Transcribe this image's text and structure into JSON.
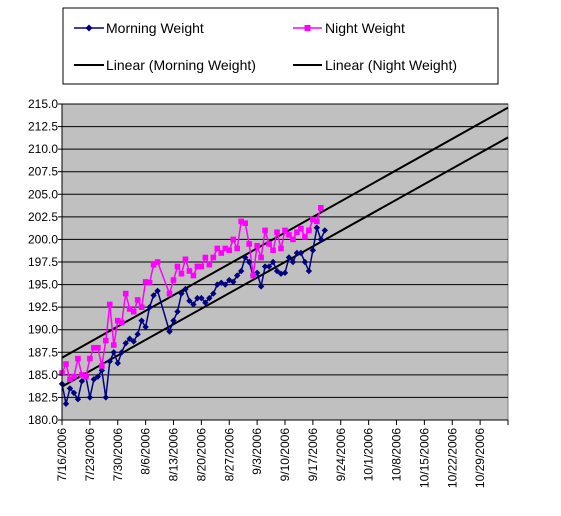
{
  "chart_data": {
    "type": "line",
    "title": "",
    "xlabel": "",
    "ylabel": "",
    "ylim": [
      180.0,
      215.0
    ],
    "y_ticks": [
      "180.0",
      "182.5",
      "185.0",
      "187.5",
      "190.0",
      "192.5",
      "195.0",
      "197.5",
      "200.0",
      "202.5",
      "205.0",
      "207.5",
      "210.0",
      "212.5",
      "215.0"
    ],
    "x_range": [
      "7/16/2006",
      "11/5/2006"
    ],
    "x_tick_labels": [
      "7/16/2006",
      "7/23/2006",
      "7/30/2006",
      "8/6/2006",
      "8/13/2006",
      "8/20/2006",
      "8/27/2006",
      "9/3/2006",
      "9/10/2006",
      "9/17/2006",
      "9/24/2006",
      "10/1/2006",
      "10/8/2006",
      "10/15/2006",
      "10/22/2006",
      "10/29/2006"
    ],
    "grid": "horizontal",
    "legend_position": "top",
    "plot_background": "#c0c0c0",
    "series": [
      {
        "name": "Morning Weight",
        "color": "#000080",
        "marker": "diamond",
        "points": [
          [
            "7/16/2006",
            184.0
          ],
          [
            "7/17/2006",
            181.8
          ],
          [
            "7/18/2006",
            183.5
          ],
          [
            "7/19/2006",
            183.0
          ],
          [
            "7/20/2006",
            182.3
          ],
          [
            "7/21/2006",
            184.3
          ],
          [
            "7/22/2006",
            184.8
          ],
          [
            "7/23/2006",
            182.5
          ],
          [
            "7/24/2006",
            184.5
          ],
          [
            "7/25/2006",
            184.8
          ],
          [
            "7/26/2006",
            185.5
          ],
          [
            "7/27/2006",
            182.5
          ],
          [
            "7/28/2006",
            186.5
          ],
          [
            "7/29/2006",
            187.5
          ],
          [
            "7/30/2006",
            186.3
          ],
          [
            "7/31/2006",
            187.5
          ],
          [
            "8/1/2006",
            188.5
          ],
          [
            "8/2/2006",
            189.0
          ],
          [
            "8/3/2006",
            188.7
          ],
          [
            "8/4/2006",
            189.5
          ],
          [
            "8/5/2006",
            191.0
          ],
          [
            "8/6/2006",
            190.3
          ],
          [
            "8/7/2006",
            192.5
          ],
          [
            "8/8/2006",
            193.8
          ],
          [
            "8/9/2006",
            194.3
          ],
          [
            "8/12/2006",
            189.8
          ],
          [
            "8/13/2006",
            191.0
          ],
          [
            "8/14/2006",
            192.0
          ],
          [
            "8/15/2006",
            194.0
          ],
          [
            "8/16/2006",
            194.5
          ],
          [
            "8/17/2006",
            193.2
          ],
          [
            "8/18/2006",
            192.8
          ],
          [
            "8/19/2006",
            193.5
          ],
          [
            "8/20/2006",
            193.5
          ],
          [
            "8/21/2006",
            193.0
          ],
          [
            "8/22/2006",
            193.5
          ],
          [
            "8/23/2006",
            194.0
          ],
          [
            "8/24/2006",
            195.0
          ],
          [
            "8/25/2006",
            195.2
          ],
          [
            "8/26/2006",
            195.0
          ],
          [
            "8/27/2006",
            195.5
          ],
          [
            "8/28/2006",
            195.3
          ],
          [
            "8/29/2006",
            196.0
          ],
          [
            "8/30/2006",
            196.5
          ],
          [
            "8/31/2006",
            198.0
          ],
          [
            "9/1/2006",
            197.5
          ],
          [
            "9/2/2006",
            196.0
          ],
          [
            "9/3/2006",
            196.3
          ],
          [
            "9/4/2006",
            194.8
          ],
          [
            "9/5/2006",
            197.0
          ],
          [
            "9/6/2006",
            197.0
          ],
          [
            "9/7/2006",
            197.5
          ],
          [
            "9/8/2006",
            196.5
          ],
          [
            "9/9/2006",
            196.2
          ],
          [
            "9/10/2006",
            196.3
          ],
          [
            "9/11/2006",
            198.0
          ],
          [
            "9/12/2006",
            197.5
          ],
          [
            "9/13/2006",
            198.5
          ],
          [
            "9/14/2006",
            198.5
          ],
          [
            "9/15/2006",
            197.5
          ],
          [
            "9/16/2006",
            196.5
          ],
          [
            "9/17/2006",
            198.8
          ],
          [
            "9/18/2006",
            201.3
          ],
          [
            "9/19/2006",
            200.0
          ],
          [
            "9/20/2006",
            201.0
          ]
        ]
      },
      {
        "name": "Night Weight",
        "color": "#ff00ff",
        "marker": "square",
        "points": [
          [
            "7/16/2006",
            185.2
          ],
          [
            "7/17/2006",
            186.2
          ],
          [
            "7/18/2006",
            184.5
          ],
          [
            "7/19/2006",
            184.8
          ],
          [
            "7/20/2006",
            186.8
          ],
          [
            "7/21/2006",
            185.0
          ],
          [
            "7/22/2006",
            184.8
          ],
          [
            "7/23/2006",
            186.8
          ],
          [
            "7/24/2006",
            188.0
          ],
          [
            "7/25/2006",
            188.0
          ],
          [
            "7/26/2006",
            186.0
          ],
          [
            "7/27/2006",
            188.8
          ],
          [
            "7/28/2006",
            192.8
          ],
          [
            "7/29/2006",
            188.3
          ],
          [
            "7/30/2006",
            191.0
          ],
          [
            "7/31/2006",
            190.8
          ],
          [
            "8/1/2006",
            194.0
          ],
          [
            "8/2/2006",
            192.3
          ],
          [
            "8/3/2006",
            192.0
          ],
          [
            "8/4/2006",
            193.3
          ],
          [
            "8/5/2006",
            192.5
          ],
          [
            "8/6/2006",
            195.3
          ],
          [
            "8/7/2006",
            195.2
          ],
          [
            "8/8/2006",
            197.2
          ],
          [
            "8/9/2006",
            197.5
          ],
          [
            "8/12/2006",
            194.0
          ],
          [
            "8/13/2006",
            195.5
          ],
          [
            "8/14/2006",
            197.0
          ],
          [
            "8/15/2006",
            196.2
          ],
          [
            "8/16/2006",
            197.8
          ],
          [
            "8/17/2006",
            196.5
          ],
          [
            "8/18/2006",
            196.0
          ],
          [
            "8/19/2006",
            197.0
          ],
          [
            "8/20/2006",
            197.0
          ],
          [
            "8/21/2006",
            198.0
          ],
          [
            "8/22/2006",
            197.2
          ],
          [
            "8/23/2006",
            198.0
          ],
          [
            "8/24/2006",
            199.0
          ],
          [
            "8/25/2006",
            198.5
          ],
          [
            "8/26/2006",
            199.0
          ],
          [
            "8/27/2006",
            198.8
          ],
          [
            "8/28/2006",
            200.0
          ],
          [
            "8/29/2006",
            199.0
          ],
          [
            "8/30/2006",
            202.0
          ],
          [
            "8/31/2006",
            201.8
          ],
          [
            "9/1/2006",
            199.5
          ],
          [
            "9/2/2006",
            196.0
          ],
          [
            "9/3/2006",
            199.3
          ],
          [
            "9/4/2006",
            198.0
          ],
          [
            "9/5/2006",
            201.0
          ],
          [
            "9/6/2006",
            199.5
          ],
          [
            "9/7/2006",
            198.8
          ],
          [
            "9/8/2006",
            200.8
          ],
          [
            "9/9/2006",
            199.0
          ],
          [
            "9/10/2006",
            201.0
          ],
          [
            "9/11/2006",
            200.5
          ],
          [
            "9/12/2006",
            200.0
          ],
          [
            "9/13/2006",
            200.8
          ],
          [
            "9/14/2006",
            201.2
          ],
          [
            "9/15/2006",
            200.3
          ],
          [
            "9/16/2006",
            201.0
          ],
          [
            "9/17/2006",
            202.2
          ],
          [
            "9/18/2006",
            202.0
          ],
          [
            "9/19/2006",
            203.5
          ]
        ]
      },
      {
        "name": "Linear (Morning Weight)",
        "color": "#000000",
        "type": "trendline",
        "points": [
          [
            "7/16/2006",
            183.7
          ],
          [
            "11/5/2006",
            211.3
          ]
        ]
      },
      {
        "name": "Linear (Night Weight)",
        "color": "#000000",
        "type": "trendline",
        "points": [
          [
            "7/16/2006",
            186.9
          ],
          [
            "11/5/2006",
            214.6
          ]
        ]
      }
    ]
  }
}
